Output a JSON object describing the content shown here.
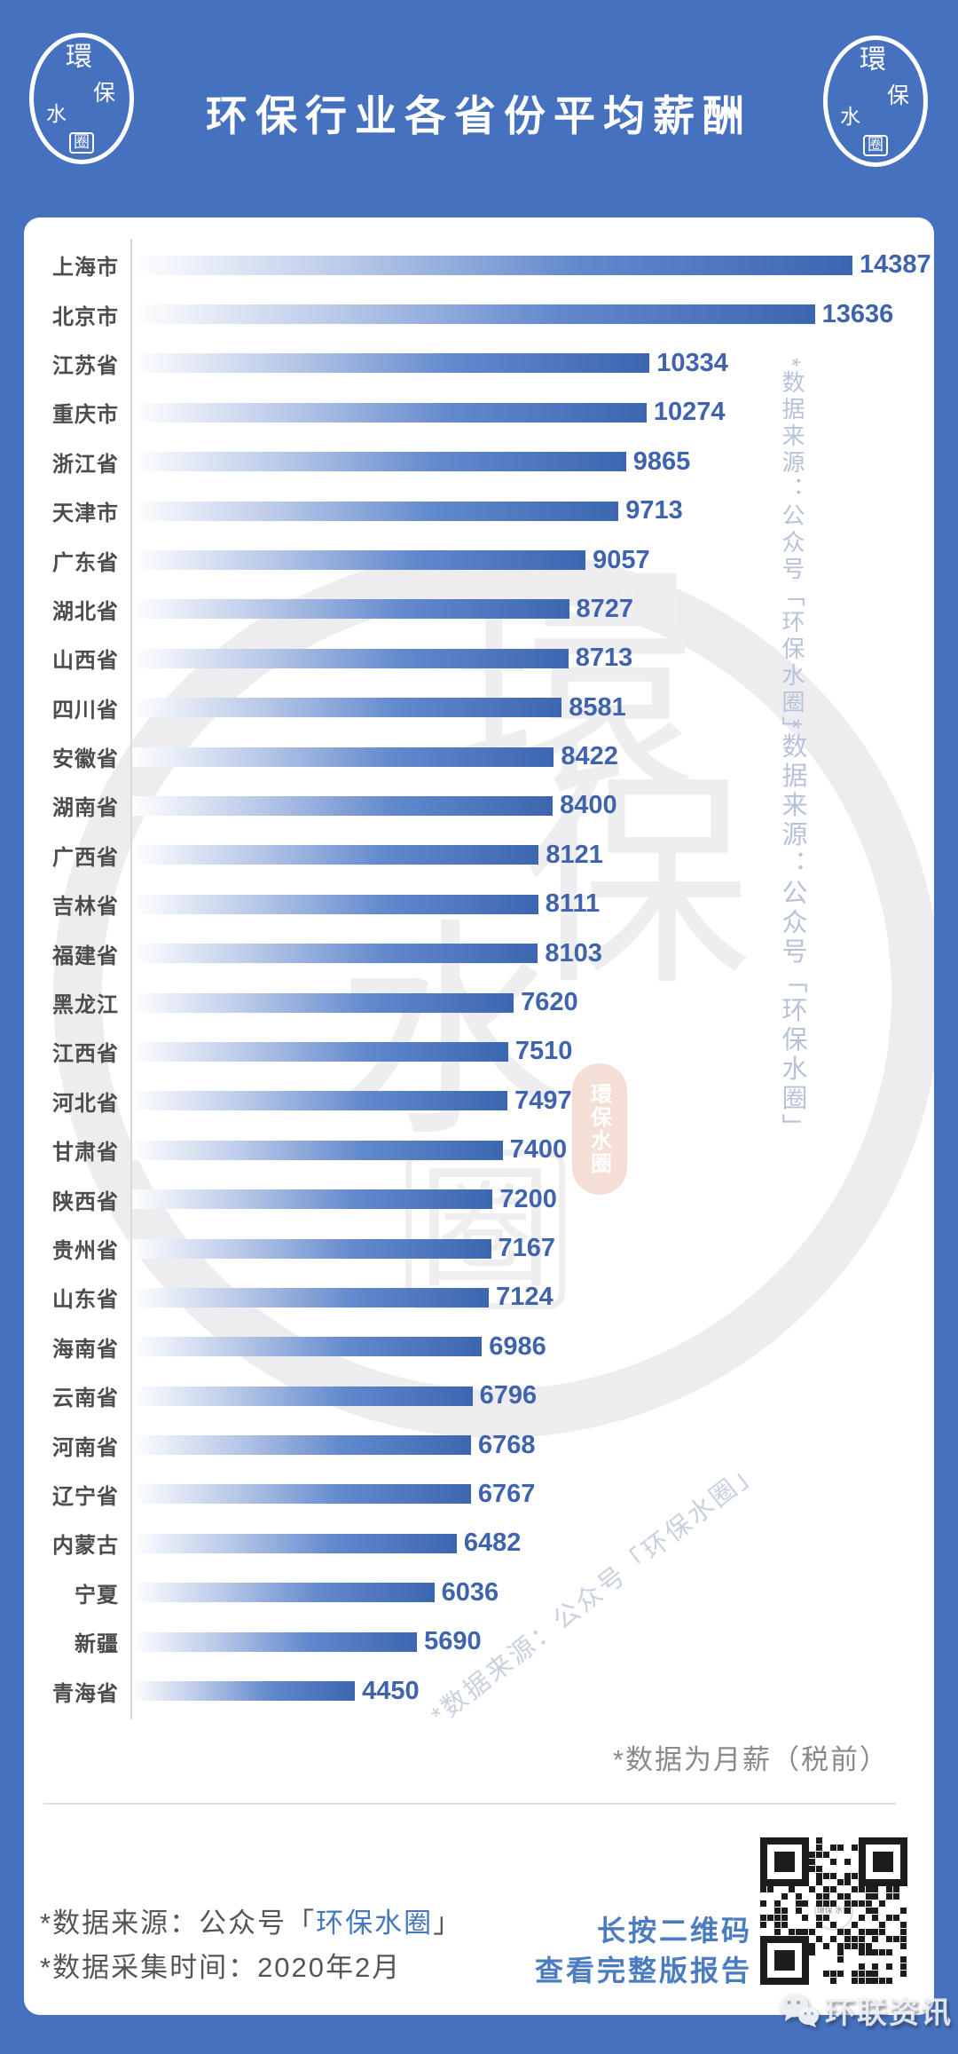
{
  "header": {
    "title": "环保行业各省份平均薪酬",
    "logo_chars": [
      "環",
      "保",
      "水",
      "圈"
    ]
  },
  "chart_data": {
    "type": "bar",
    "orientation": "horizontal",
    "title": "环保行业各省份平均薪酬",
    "categories": [
      "上海市",
      "北京市",
      "江苏省",
      "重庆市",
      "浙江省",
      "天津市",
      "广东省",
      "湖北省",
      "山西省",
      "四川省",
      "安徽省",
      "湖南省",
      "广西省",
      "吉林省",
      "福建省",
      "黑龙江",
      "江西省",
      "河北省",
      "甘肃省",
      "陕西省",
      "贵州省",
      "山东省",
      "海南省",
      "云南省",
      "河南省",
      "辽宁省",
      "内蒙古",
      "宁夏",
      "新疆",
      "青海省"
    ],
    "values": [
      14387,
      13636,
      10334,
      10274,
      9865,
      9713,
      9057,
      8727,
      8713,
      8581,
      8422,
      8400,
      8121,
      8111,
      8103,
      7620,
      7510,
      7497,
      7400,
      7200,
      7167,
      7124,
      6986,
      6796,
      6768,
      6767,
      6482,
      6036,
      5690,
      4450
    ],
    "xlim": [
      0,
      14387
    ],
    "value_labels_shown": true,
    "grid": false,
    "legend": false,
    "unit_note": "*数据为月薪（税前）"
  },
  "watermarks": {
    "vertical_text_1": "*数据来源：公众号「环保水圈」",
    "vertical_text_2": "*数据来源：公众号「环保水圈」",
    "diagonal_text": "*数据来源：公众号「环保水圈」",
    "stamp_chars": [
      "環",
      "保",
      "水",
      "圈"
    ],
    "red_seal_text": "環保水圈"
  },
  "note": "*数据为月薪（税前）",
  "footer": {
    "source_prefix": "*数据来源：公众号「",
    "source_name": "环保水圈",
    "source_suffix": "」",
    "collect_time": "*数据采集时间：2020年2月",
    "qr_line1": "长按二维码",
    "qr_line2": "查看完整版报告",
    "qr_center_label": "環保 水圈"
  },
  "brand": {
    "name": "环联资讯"
  },
  "colors": {
    "background": "#4571bf",
    "bar_gradient_end": "#3c66b0",
    "value_text": "#3f63ac",
    "label_text": "#4c4c4c",
    "footer_blue": "#4577bd",
    "link_blue": "#4b7cc0",
    "note_gray": "#8a8a8a",
    "red_seal_bg": "#f5ded6"
  }
}
